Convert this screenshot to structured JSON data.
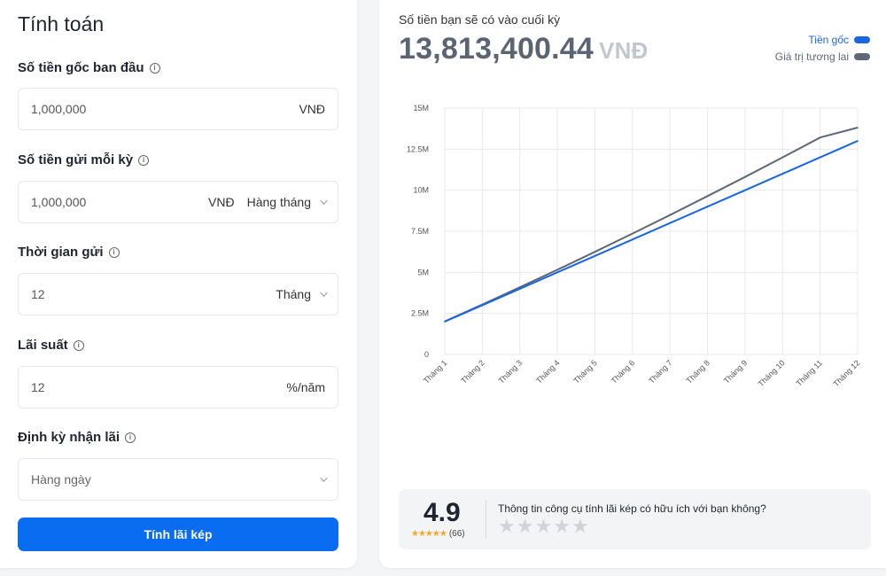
{
  "calculator": {
    "title": "Tính toán",
    "principal": {
      "label": "Số tiền gốc ban đầu",
      "value": "1,000,000",
      "unit": "VNĐ"
    },
    "deposit": {
      "label": "Số tiền gửi mỗi kỳ",
      "value": "1,000,000",
      "unit": "VNĐ",
      "frequency": "Hàng tháng"
    },
    "duration": {
      "label": "Thời gian gửi",
      "value": "12",
      "unit": "Tháng"
    },
    "rate": {
      "label": "Lãi suất",
      "value": "12",
      "unit": "%/năm"
    },
    "payout": {
      "label": "Định kỳ nhận lãi",
      "value": "Hàng ngày"
    },
    "submit_label": "Tính lãi kép"
  },
  "result": {
    "caption": "Số tiền bạn sẽ có vào cuối kỳ",
    "amount": "13,813,400.44",
    "currency": "VNĐ",
    "legend": [
      {
        "label": "Tiền gốc",
        "color": "#1a66e0"
      },
      {
        "label": "Giá trị tương lai",
        "color": "#5e6878"
      }
    ]
  },
  "chart_data": {
    "type": "line",
    "x": [
      "Tháng 1",
      "Tháng 2",
      "Tháng 3",
      "Tháng 4",
      "Tháng 5",
      "Tháng 6",
      "Tháng 7",
      "Tháng 8",
      "Tháng 9",
      "Tháng 10",
      "Tháng 11",
      "Tháng 12"
    ],
    "series": [
      {
        "name": "Tiền gốc",
        "color": "#1a66e0",
        "values": [
          2000000,
          3000000,
          4000000,
          5000000,
          6000000,
          7000000,
          8000000,
          9000000,
          10000000,
          11000000,
          12000000,
          13000000
        ]
      },
      {
        "name": "Giá trị tương lai",
        "color": "#5e6878",
        "values": [
          2010000,
          3040000,
          4090000,
          5160000,
          6250000,
          7360000,
          8490000,
          9640000,
          10810000,
          12000000,
          13210000,
          13813400
        ]
      }
    ],
    "y_ticks": [
      {
        "value": 0,
        "label": "0"
      },
      {
        "value": 2500000,
        "label": "2.5M"
      },
      {
        "value": 5000000,
        "label": "5M"
      },
      {
        "value": 7500000,
        "label": "7.5M"
      },
      {
        "value": 10000000,
        "label": "10M"
      },
      {
        "value": 12500000,
        "label": "12.5M"
      },
      {
        "value": 15000000,
        "label": "15M"
      }
    ],
    "ylim": [
      0,
      15000000
    ],
    "grid": true,
    "legend_position": "top-right"
  },
  "rating": {
    "score": "4.9",
    "count": "(66)",
    "stars_display": "★★★★★",
    "question": "Thông tin công cụ tính lãi kép có hữu ích với bạn không?",
    "star_glyph": "★"
  }
}
